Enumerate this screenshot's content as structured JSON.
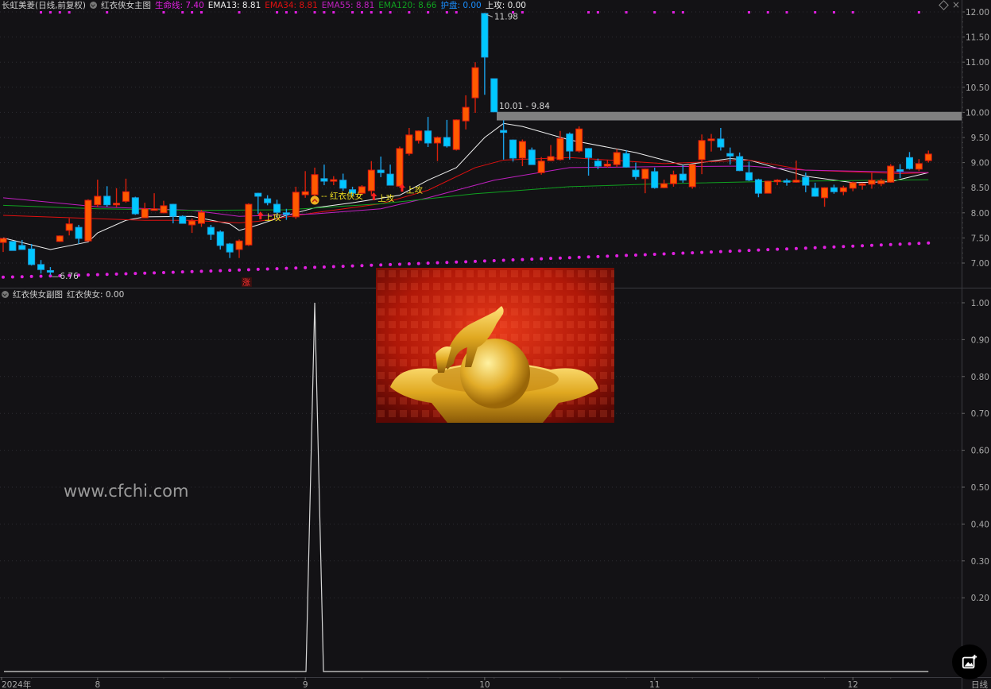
{
  "legend": {
    "stock": "长虹美菱(日线,前复权)",
    "indicator": "红衣侠女主图",
    "items": [
      {
        "label": "生命线: 7.40",
        "color": "#e020e0"
      },
      {
        "label": "EMA13: 8.81",
        "color": "#eeeeee"
      },
      {
        "label": "EMA34: 8.81",
        "color": "#e01010"
      },
      {
        "label": "EMA55: 8.81",
        "color": "#c020c0"
      },
      {
        "label": "EMA120: 8.66",
        "color": "#10a020"
      },
      {
        "label": "护盘: 0.00",
        "color": "#1a8fff"
      },
      {
        "label": "上攻: 0.00",
        "color": "#eeeeee"
      }
    ]
  },
  "sub_legend": {
    "indicator": "红衣侠女副图",
    "value": "红衣侠女: 0.00"
  },
  "watermark": "www.cfchi.com",
  "annotations": {
    "high_label": "11.98",
    "low_label": "6.76",
    "gap_label": "10.01 - 9.84",
    "signal_label": "红衣侠女",
    "attack_label": "上攻",
    "rise_label": "涨"
  },
  "colors": {
    "up": "#ff5a00",
    "up_border": "#e01810",
    "down": "#00c8ff",
    "down_border": "#1a9fe0",
    "background": "#131215"
  },
  "icons": {
    "fab": "image-add-icon",
    "collapse": "chevron-down-icon"
  },
  "chart_data": [
    {
      "type": "candlestick",
      "ylim": [
        6.6,
        12.1
      ],
      "yticks": [
        "12.00",
        "11.50",
        "11.00",
        "10.50",
        "10.00",
        "9.50",
        "9.00",
        "8.50",
        "8.00",
        "7.50",
        "7.00"
      ],
      "xticks": [
        {
          "label": "2024年",
          "index": 0
        },
        {
          "label": "8",
          "index": 10
        },
        {
          "label": "9",
          "index": 32
        },
        {
          "label": "10",
          "index": 51
        },
        {
          "label": "11",
          "index": 69
        },
        {
          "label": "12",
          "index": 90
        }
      ],
      "period_label": "日线",
      "ohlc": [
        [
          7.41,
          7.5,
          7.22,
          7.49
        ],
        [
          7.43,
          7.43,
          7.25,
          7.25
        ],
        [
          7.35,
          7.46,
          7.27,
          7.27
        ],
        [
          7.28,
          7.38,
          6.95,
          6.97
        ],
        [
          6.97,
          7.06,
          6.79,
          6.87
        ],
        [
          6.85,
          6.92,
          6.76,
          6.83
        ],
        [
          7.43,
          7.55,
          7.42,
          7.54
        ],
        [
          7.65,
          7.89,
          7.55,
          7.78
        ],
        [
          7.71,
          7.76,
          7.38,
          7.49
        ],
        [
          7.44,
          8.27,
          7.43,
          8.25
        ],
        [
          8.16,
          8.66,
          8.11,
          8.33
        ],
        [
          8.33,
          8.53,
          8.12,
          8.16
        ],
        [
          8.17,
          8.49,
          8.11,
          8.19
        ],
        [
          8.23,
          8.68,
          8.2,
          8.42
        ],
        [
          8.3,
          8.32,
          7.96,
          7.98
        ],
        [
          7.9,
          8.2,
          7.9,
          8.08
        ],
        [
          8.06,
          8.39,
          8.05,
          8.08
        ],
        [
          8.0,
          8.24,
          7.99,
          8.14
        ],
        [
          8.17,
          8.18,
          7.79,
          7.93
        ],
        [
          7.93,
          7.95,
          7.79,
          7.79
        ],
        [
          7.76,
          7.89,
          7.6,
          7.84
        ],
        [
          7.79,
          8.06,
          7.72,
          8.01
        ],
        [
          7.71,
          7.76,
          7.46,
          7.57
        ],
        [
          7.62,
          7.65,
          7.27,
          7.35
        ],
        [
          7.38,
          7.4,
          7.1,
          7.22
        ],
        [
          7.27,
          7.47,
          7.1,
          7.44
        ],
        [
          7.36,
          8.19,
          7.34,
          8.17
        ],
        [
          8.39,
          8.4,
          7.98,
          8.33
        ],
        [
          8.28,
          8.35,
          8.15,
          8.2
        ],
        [
          8.17,
          8.26,
          7.9,
          8.01
        ],
        [
          8.0,
          8.08,
          7.86,
          7.97
        ],
        [
          7.92,
          8.52,
          7.88,
          8.41
        ],
        [
          8.36,
          8.83,
          8.3,
          8.42
        ],
        [
          8.36,
          8.9,
          8.3,
          8.76
        ],
        [
          8.68,
          8.96,
          8.55,
          8.63
        ],
        [
          8.64,
          8.73,
          8.55,
          8.66
        ],
        [
          8.65,
          8.78,
          8.44,
          8.49
        ],
        [
          8.46,
          8.52,
          8.33,
          8.39
        ],
        [
          8.39,
          8.55,
          8.35,
          8.52
        ],
        [
          8.44,
          9.03,
          8.36,
          8.85
        ],
        [
          8.85,
          9.12,
          8.71,
          8.8
        ],
        [
          8.77,
          8.96,
          8.55,
          8.55
        ],
        [
          8.53,
          9.32,
          8.53,
          9.28
        ],
        [
          9.18,
          9.69,
          9.14,
          9.55
        ],
        [
          9.44,
          9.64,
          9.38,
          9.63
        ],
        [
          9.63,
          9.91,
          9.31,
          9.39
        ],
        [
          9.39,
          9.52,
          9.03,
          9.5
        ],
        [
          9.5,
          9.85,
          9.3,
          9.33
        ],
        [
          9.26,
          9.86,
          9.24,
          9.85
        ],
        [
          9.83,
          10.34,
          9.66,
          10.1
        ],
        [
          10.29,
          11.0,
          9.99,
          10.89
        ],
        [
          11.97,
          11.98,
          10.35,
          11.1
        ],
        [
          10.67,
          10.67,
          10.01,
          10.01
        ],
        [
          9.64,
          9.84,
          9.06,
          9.6
        ],
        [
          9.45,
          9.46,
          9.02,
          9.09
        ],
        [
          9.09,
          9.46,
          8.93,
          9.42
        ],
        [
          9.25,
          9.3,
          8.96,
          8.96
        ],
        [
          8.8,
          9.11,
          8.76,
          9.03
        ],
        [
          9.04,
          9.35,
          9.03,
          9.12
        ],
        [
          9.06,
          9.63,
          9.04,
          9.48
        ],
        [
          9.57,
          9.6,
          9.06,
          9.23
        ],
        [
          9.23,
          9.72,
          9.2,
          9.67
        ],
        [
          9.28,
          9.29,
          8.74,
          9.1
        ],
        [
          9.03,
          9.08,
          8.87,
          8.93
        ],
        [
          8.93,
          9.05,
          8.9,
          8.97
        ],
        [
          8.96,
          9.27,
          8.91,
          9.2
        ],
        [
          9.18,
          9.25,
          8.9,
          8.91
        ],
        [
          8.85,
          9.0,
          8.66,
          8.72
        ],
        [
          8.68,
          8.88,
          8.39,
          8.87
        ],
        [
          8.82,
          8.9,
          8.48,
          8.5
        ],
        [
          8.5,
          8.66,
          8.49,
          8.58
        ],
        [
          8.58,
          8.84,
          8.52,
          8.76
        ],
        [
          8.77,
          8.95,
          8.6,
          8.65
        ],
        [
          8.52,
          8.97,
          8.48,
          8.96
        ],
        [
          9.06,
          9.56,
          8.77,
          9.44
        ],
        [
          9.44,
          9.57,
          9.22,
          9.47
        ],
        [
          9.47,
          9.69,
          9.24,
          9.31
        ],
        [
          9.18,
          9.3,
          8.96,
          9.13
        ],
        [
          9.12,
          9.2,
          8.83,
          8.84
        ],
        [
          8.8,
          9.02,
          8.63,
          8.65
        ],
        [
          8.66,
          8.68,
          8.31,
          8.39
        ],
        [
          8.39,
          8.64,
          8.39,
          8.63
        ],
        [
          8.63,
          8.67,
          8.55,
          8.65
        ],
        [
          8.64,
          8.68,
          8.54,
          8.62
        ],
        [
          8.61,
          9.04,
          8.6,
          8.65
        ],
        [
          8.71,
          8.8,
          8.41,
          8.55
        ],
        [
          8.49,
          8.6,
          8.32,
          8.33
        ],
        [
          8.3,
          8.51,
          8.12,
          8.5
        ],
        [
          8.5,
          8.56,
          8.38,
          8.42
        ],
        [
          8.42,
          8.54,
          8.35,
          8.5
        ],
        [
          8.49,
          8.62,
          8.43,
          8.6
        ],
        [
          8.56,
          8.6,
          8.46,
          8.58
        ],
        [
          8.57,
          8.8,
          8.48,
          8.65
        ],
        [
          8.58,
          8.68,
          8.53,
          8.64
        ],
        [
          8.61,
          8.97,
          8.6,
          8.93
        ],
        [
          8.86,
          8.97,
          8.69,
          8.84
        ],
        [
          9.1,
          9.21,
          8.86,
          8.88
        ],
        [
          8.87,
          9.07,
          8.83,
          8.98
        ],
        [
          9.04,
          9.24,
          9.0,
          9.17
        ]
      ],
      "lines": [
        {
          "name": "EMA13",
          "color": "#eeeeee",
          "points": [
            [
              0,
              7.5
            ],
            [
              5,
              7.27
            ],
            [
              9,
              7.42
            ],
            [
              10,
              7.6
            ],
            [
              13,
              7.85
            ],
            [
              15,
              7.92
            ],
            [
              20,
              7.93
            ],
            [
              24,
              7.78
            ],
            [
              25,
              7.65
            ],
            [
              27,
              7.76
            ],
            [
              30,
              7.95
            ],
            [
              33,
              8.1
            ],
            [
              37,
              8.2
            ],
            [
              42,
              8.35
            ],
            [
              45,
              8.65
            ],
            [
              48,
              8.9
            ],
            [
              51,
              9.5
            ],
            [
              53,
              9.78
            ],
            [
              55,
              9.72
            ],
            [
              60,
              9.45
            ],
            [
              67,
              9.2
            ],
            [
              72,
              8.95
            ],
            [
              77,
              9.08
            ],
            [
              79,
              9.05
            ],
            [
              85,
              8.73
            ],
            [
              90,
              8.6
            ],
            [
              94,
              8.62
            ],
            [
              98,
              8.8
            ]
          ]
        },
        {
          "name": "EMA34",
          "color": "#e01010",
          "points": [
            [
              0,
              7.95
            ],
            [
              15,
              7.85
            ],
            [
              20,
              7.85
            ],
            [
              25,
              7.8
            ],
            [
              27,
              7.83
            ],
            [
              33,
              8.0
            ],
            [
              40,
              8.18
            ],
            [
              45,
              8.45
            ],
            [
              50,
              8.9
            ],
            [
              53,
              9.05
            ],
            [
              60,
              9.1
            ],
            [
              70,
              8.98
            ],
            [
              79,
              9.05
            ],
            [
              85,
              8.85
            ],
            [
              95,
              8.78
            ],
            [
              98,
              8.8
            ]
          ]
        },
        {
          "name": "EMA55",
          "color": "#c020c0",
          "points": [
            [
              0,
              8.3
            ],
            [
              10,
              8.12
            ],
            [
              20,
              8.05
            ],
            [
              25,
              7.93
            ],
            [
              33,
              7.98
            ],
            [
              40,
              8.08
            ],
            [
              45,
              8.3
            ],
            [
              52,
              8.65
            ],
            [
              60,
              8.9
            ],
            [
              70,
              8.92
            ],
            [
              79,
              8.93
            ],
            [
              85,
              8.85
            ],
            [
              98,
              8.8
            ]
          ]
        },
        {
          "name": "EMA120",
          "color": "#10a020",
          "points": [
            [
              0,
              8.15
            ],
            [
              10,
              8.08
            ],
            [
              20,
              8.05
            ],
            [
              30,
              8.06
            ],
            [
              40,
              8.18
            ],
            [
              50,
              8.38
            ],
            [
              60,
              8.52
            ],
            [
              70,
              8.58
            ],
            [
              80,
              8.62
            ],
            [
              98,
              8.66
            ]
          ]
        }
      ],
      "lifeline": {
        "name": "生命线",
        "color": "#e020e0",
        "start": 6.72,
        "end": 7.4
      },
      "gap_zone": [
        9.84,
        10.01
      ],
      "top_signal_indices": [
        4,
        5,
        6,
        7,
        11,
        17,
        19,
        20,
        21,
        25,
        29,
        30,
        31,
        33,
        34,
        35,
        37,
        38,
        39,
        40,
        41,
        43,
        45,
        47,
        48,
        54,
        55,
        62,
        63,
        66,
        69,
        71,
        72,
        79,
        81,
        83,
        86,
        88,
        90,
        97
      ],
      "attack_indices": [
        27,
        39,
        42
      ],
      "signal_index": 33,
      "rise_index": 26,
      "high_index": 51,
      "low_index": 5
    },
    {
      "type": "line",
      "name": "红衣侠女",
      "ylim": [
        0,
        1.0
      ],
      "yticks": [
        "1.00",
        "0.90",
        "0.80",
        "0.70",
        "0.60",
        "0.50",
        "0.40",
        "0.30",
        "0.20"
      ],
      "values_spike_index": 33,
      "spike_value": 1.0,
      "baseline": 0.0
    }
  ]
}
